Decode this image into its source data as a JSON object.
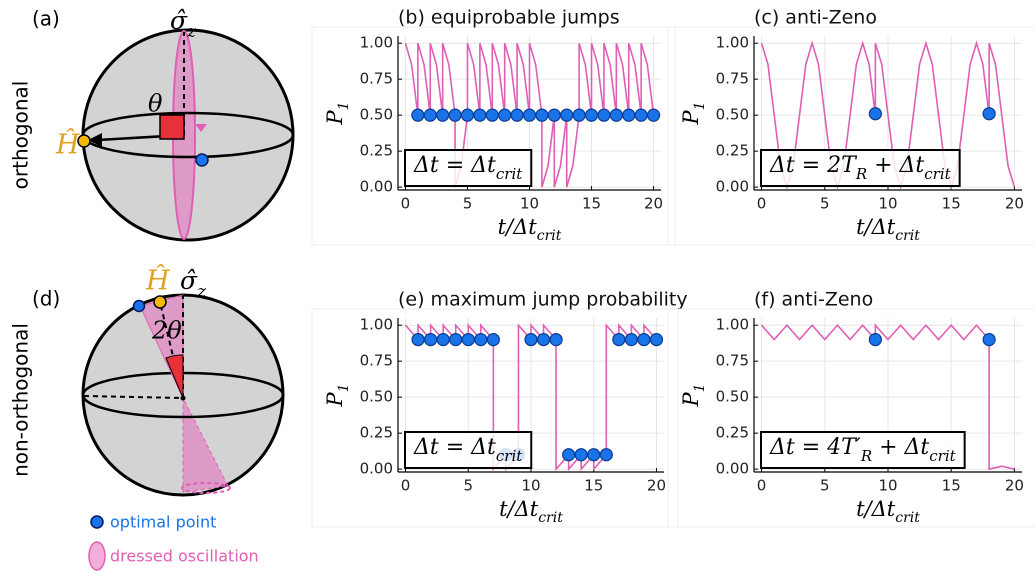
{
  "chart_data": [
    {
      "type": "line",
      "title": "(b) equiprobable jumps",
      "xlabel": [
        "t/Δt",
        "crit"
      ],
      "ylabel": [
        "P",
        "1"
      ],
      "annotation": [
        "Δt = Δt",
        "crit"
      ],
      "grid": true,
      "xlim": [
        -0.6,
        20.6
      ],
      "ylim": [
        -0.02,
        1.05
      ],
      "xticks": [
        0,
        5,
        10,
        15,
        20
      ],
      "yticks": [
        {
          "value": 0,
          "label": "0.00"
        },
        {
          "value": 0.25,
          "label": "0.25"
        },
        {
          "value": 0.5,
          "label": "0.50"
        },
        {
          "value": 0.75,
          "label": "0.75"
        },
        {
          "value": 1,
          "label": "1.00"
        }
      ],
      "series": [
        {
          "type": "line",
          "color": "#e05fb5",
          "x": [
            0,
            0.5,
            1,
            1,
            1.5,
            2,
            2,
            2.5,
            3,
            3,
            3.5,
            4,
            4,
            4.5,
            5,
            5,
            5.5,
            6,
            6,
            6.5,
            7,
            7,
            7.5,
            8,
            8,
            8.5,
            9,
            9,
            9.5,
            10,
            10,
            10.5,
            11,
            11,
            11.5,
            12,
            12,
            12.5,
            13,
            13,
            13.5,
            14,
            14,
            14.5,
            15,
            15,
            15.5,
            16,
            16,
            16.5,
            17,
            17,
            17.5,
            18,
            18,
            18.5,
            19,
            19,
            19.5,
            20
          ],
          "values": [
            1,
            0.85,
            0.5,
            1,
            0.85,
            0.5,
            1,
            0.85,
            0.5,
            1,
            0.85,
            0.5,
            0,
            0.15,
            0.5,
            1,
            0.85,
            0.5,
            1,
            0.85,
            0.5,
            1,
            0.85,
            0.5,
            1,
            0.85,
            0.5,
            1,
            0.85,
            0.5,
            1,
            0.85,
            0.5,
            0,
            0.15,
            0.5,
            0,
            0.15,
            0.5,
            0,
            0.15,
            0.5,
            1,
            0.85,
            0.5,
            1,
            0.85,
            0.5,
            1,
            0.85,
            0.5,
            1,
            0.85,
            0.5,
            1,
            0.85,
            0.5,
            1,
            0.85,
            0.5
          ]
        },
        {
          "type": "scatter",
          "color": "#1a73e8",
          "x": [
            1,
            2,
            3,
            4,
            5,
            6,
            7,
            8,
            9,
            10,
            11,
            12,
            13,
            14,
            15,
            16,
            17,
            18,
            19,
            20
          ],
          "values": [
            0.5,
            0.5,
            0.5,
            0.5,
            0.5,
            0.5,
            0.5,
            0.5,
            0.5,
            0.5,
            0.5,
            0.5,
            0.5,
            0.5,
            0.5,
            0.5,
            0.5,
            0.5,
            0.5,
            0.5
          ]
        }
      ]
    },
    {
      "type": "line",
      "title": "(c) anti-Zeno",
      "xlabel": [
        "t/Δt",
        "crit"
      ],
      "ylabel": [
        "P",
        "1"
      ],
      "annotation": [
        "Δt = 2T",
        "R",
        " + Δt",
        "crit"
      ],
      "grid": true,
      "xlim": [
        -0.6,
        20.6
      ],
      "ylim": [
        -0.02,
        1.05
      ],
      "xticks": [
        0,
        5,
        10,
        15,
        20
      ],
      "yticks": [
        {
          "value": 0,
          "label": "0.00"
        },
        {
          "value": 0.25,
          "label": "0.25"
        },
        {
          "value": 0.5,
          "label": "0.50"
        },
        {
          "value": 0.75,
          "label": "0.75"
        },
        {
          "value": 1,
          "label": "1.00"
        }
      ],
      "series": [
        {
          "type": "line",
          "color": "#e05fb5",
          "x": [
            0,
            0.5,
            1,
            1.5,
            2,
            2.5,
            3,
            3.5,
            4,
            4.5,
            5,
            5.5,
            6,
            6.5,
            7,
            7.5,
            8,
            8.5,
            9,
            9,
            9.5,
            10,
            10.5,
            11,
            11.5,
            12,
            12.5,
            13,
            13.5,
            14,
            14.5,
            15,
            15.5,
            16,
            16.5,
            17,
            17.5,
            18,
            18,
            18.5,
            19,
            19.5,
            20
          ],
          "values": [
            1,
            0.854,
            0.5,
            0.146,
            0,
            0.146,
            0.5,
            0.854,
            1,
            0.854,
            0.5,
            0.146,
            0,
            0.146,
            0.5,
            0.854,
            1,
            0.854,
            0.5,
            1,
            0.854,
            0.5,
            0.146,
            0,
            0.146,
            0.5,
            0.854,
            1,
            0.854,
            0.5,
            0.146,
            0,
            0.146,
            0.5,
            0.854,
            1,
            0.854,
            0.5,
            1,
            0.854,
            0.5,
            0.146,
            0
          ]
        },
        {
          "type": "scatter",
          "color": "#1a73e8",
          "x": [
            9,
            18
          ],
          "values": [
            0.51,
            0.51
          ]
        }
      ]
    },
    {
      "type": "line",
      "title": "(e) maximum jump probability",
      "xlabel": [
        "t/Δt",
        "crit"
      ],
      "ylabel": [
        "P",
        "1"
      ],
      "annotation": [
        "Δt = Δt",
        "crit"
      ],
      "grid": true,
      "xlim": [
        -0.6,
        20.6
      ],
      "ylim": [
        -0.02,
        1.05
      ],
      "xticks": [
        0,
        5,
        10,
        15,
        20
      ],
      "yticks": [
        {
          "value": 0,
          "label": "0.00"
        },
        {
          "value": 0.25,
          "label": "0.25"
        },
        {
          "value": 0.5,
          "label": "0.50"
        },
        {
          "value": 0.75,
          "label": "0.75"
        },
        {
          "value": 1,
          "label": "1.00"
        }
      ],
      "series": [
        {
          "type": "line",
          "color": "#e05fb5",
          "x": [
            0,
            0.5,
            1,
            1,
            1.5,
            2,
            2,
            2.5,
            3,
            3,
            3.5,
            4,
            4,
            4.5,
            5,
            5,
            5.5,
            6,
            6,
            6.5,
            7,
            7,
            7.5,
            8,
            8,
            8.5,
            9,
            9,
            9.5,
            10,
            10,
            10.5,
            11,
            11,
            11.5,
            12,
            12,
            12.5,
            13,
            13,
            13.5,
            14,
            14,
            14.5,
            15,
            15,
            15.5,
            16,
            16,
            16.5,
            17,
            17,
            17.5,
            18,
            18,
            18.5,
            19,
            19,
            19.5,
            20
          ],
          "values": [
            1,
            0.95,
            0.9,
            1,
            0.95,
            0.9,
            1,
            0.95,
            0.9,
            1,
            0.95,
            0.9,
            1,
            0.95,
            0.9,
            1,
            0.95,
            0.9,
            1,
            0.95,
            0.9,
            0,
            0.05,
            0.1,
            0,
            0.05,
            0.1,
            1,
            0.95,
            0.9,
            1,
            0.95,
            0.9,
            1,
            0.95,
            0.9,
            0,
            0.05,
            0.1,
            0,
            0.05,
            0.1,
            0,
            0.05,
            0.1,
            0,
            0.05,
            0.1,
            1,
            0.95,
            0.9,
            1,
            0.95,
            0.9,
            1,
            0.95,
            0.9,
            1,
            0.95,
            0.9
          ]
        },
        {
          "type": "scatter",
          "color": "#1a73e8",
          "x": [
            1,
            2,
            3,
            4,
            5,
            6,
            7,
            8,
            9,
            10,
            11,
            12,
            13,
            14,
            15,
            16,
            17,
            18,
            19,
            20
          ],
          "values": [
            0.9,
            0.9,
            0.9,
            0.9,
            0.9,
            0.9,
            0.9,
            0.1,
            0.1,
            0.9,
            0.9,
            0.9,
            0.1,
            0.1,
            0.1,
            0.1,
            0.9,
            0.9,
            0.9,
            0.9
          ]
        }
      ]
    },
    {
      "type": "line",
      "title": "(f) anti-Zeno",
      "xlabel": [
        "t/Δt",
        "crit"
      ],
      "ylabel": [
        "P",
        "1"
      ],
      "annotation": [
        "Δt = 4T′",
        "R",
        " + Δt",
        "crit"
      ],
      "grid": true,
      "xlim": [
        -0.6,
        20.6
      ],
      "ylim": [
        -0.02,
        1.05
      ],
      "xticks": [
        0,
        5,
        10,
        15,
        20
      ],
      "yticks": [
        {
          "value": 0,
          "label": "0.00"
        },
        {
          "value": 0.25,
          "label": "0.25"
        },
        {
          "value": 0.5,
          "label": "0.50"
        },
        {
          "value": 0.75,
          "label": "0.75"
        },
        {
          "value": 1,
          "label": "1.00"
        }
      ],
      "series": [
        {
          "type": "line",
          "color": "#e05fb5",
          "x": [
            0,
            0.5,
            1,
            1.5,
            2,
            2.5,
            3,
            3.5,
            4,
            4.5,
            5,
            5.5,
            6,
            6.5,
            7,
            7.5,
            8,
            8.5,
            9,
            9,
            9.5,
            10,
            10.5,
            11,
            11.5,
            12,
            12.5,
            13,
            13.5,
            14,
            14.5,
            15,
            15.5,
            16,
            16.5,
            17,
            17.5,
            18,
            18,
            18.5,
            19,
            19.5,
            20
          ],
          "values": [
            1,
            0.95,
            0.9,
            0.95,
            1,
            0.95,
            0.9,
            0.95,
            1,
            0.95,
            0.9,
            0.95,
            1,
            0.95,
            0.9,
            0.95,
            1,
            0.95,
            0.9,
            1,
            0.95,
            0.9,
            0.95,
            1,
            0.95,
            0.9,
            0.95,
            1,
            0.95,
            0.9,
            0.95,
            1,
            0.95,
            0.9,
            0.95,
            1,
            0.95,
            0.9,
            0,
            0.01,
            0.02,
            0.01,
            0
          ]
        },
        {
          "type": "scatter",
          "color": "#1a73e8",
          "x": [
            9,
            18
          ],
          "values": [
            0.9,
            0.9
          ]
        }
      ]
    }
  ],
  "diagrams": {
    "a": {
      "label": "(a)",
      "row_label": "orthogonal",
      "axis": [
        "σ̂",
        "z"
      ],
      "angle": "θ",
      "hamiltonian": "Ĥ"
    },
    "d": {
      "label": "(d)",
      "row_label": "non-orthogonal",
      "axis": [
        "σ̂",
        "z"
      ],
      "angle": "2θ",
      "hamiltonian": "Ĥ"
    },
    "legend": [
      "optimal point",
      "dressed oscillation"
    ]
  }
}
